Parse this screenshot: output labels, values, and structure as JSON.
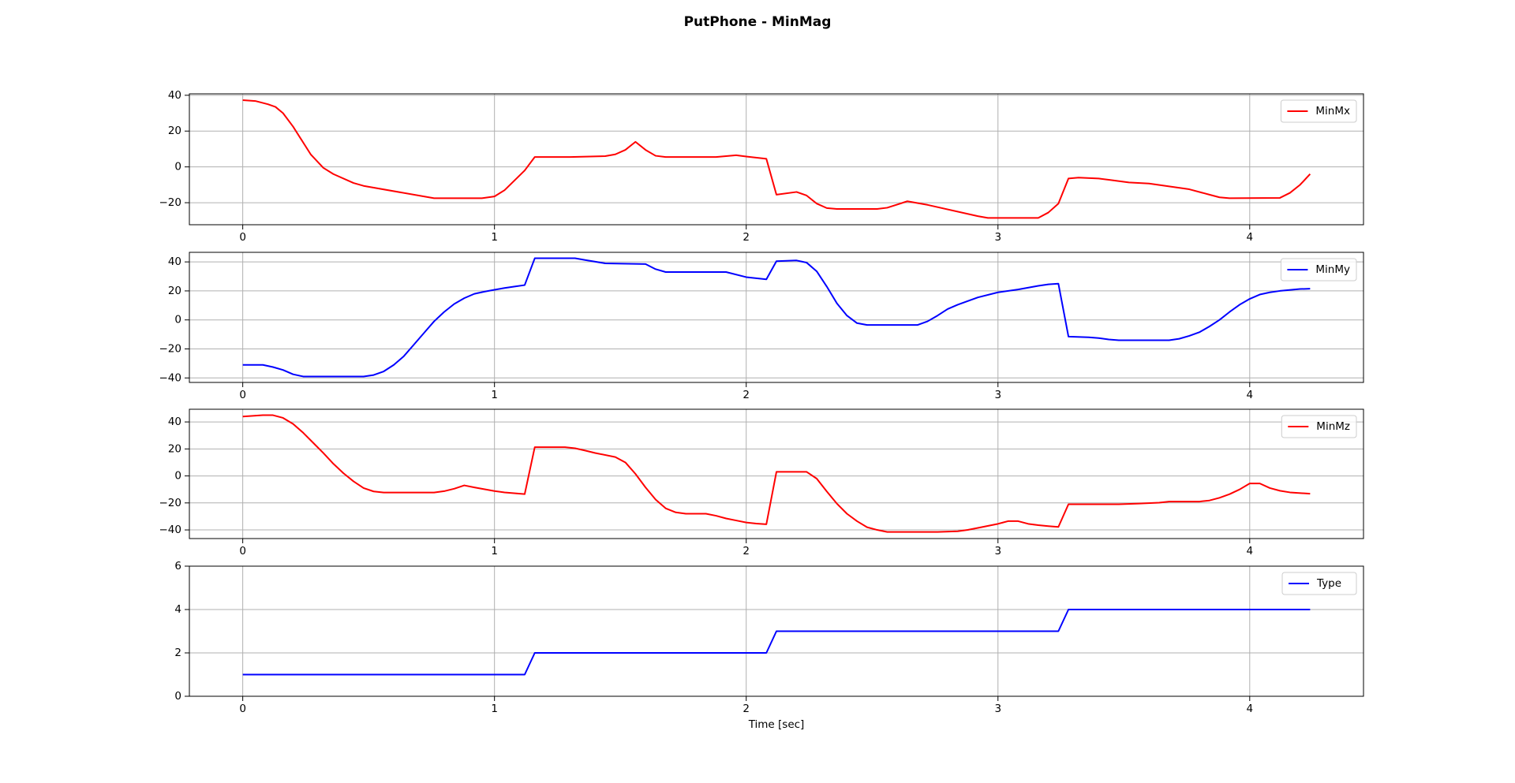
{
  "title": "PutPhone - MinMag",
  "chart_data": [
    {
      "type": "line",
      "x": [
        0,
        0.05,
        0.1,
        0.13,
        0.16,
        0.2,
        0.27,
        0.32,
        0.36,
        0.44,
        0.48,
        0.76,
        0.95,
        1.0,
        1.04,
        1.12,
        1.16,
        1.3,
        1.44,
        1.48,
        1.52,
        1.56,
        1.6,
        1.64,
        1.68,
        1.88,
        1.96,
        2.0,
        2.08,
        2.12,
        2.2,
        2.24,
        2.28,
        2.32,
        2.36,
        2.52,
        2.56,
        2.64,
        2.72,
        2.92,
        2.96,
        3.16,
        3.2,
        3.24,
        3.28,
        3.32,
        3.4,
        3.44,
        3.52,
        3.6,
        3.76,
        3.84,
        3.88,
        3.92,
        4.12,
        4.16,
        4.2,
        4.24
      ],
      "series": [
        {
          "name": "MinMx",
          "color": "#ff0000",
          "values": [
            37.3,
            36.8,
            35,
            33.5,
            30,
            22.5,
            7,
            -0.5,
            -4,
            -9,
            -10.6,
            -17.5,
            -17.5,
            -16.5,
            -13,
            -2,
            5.5,
            5.5,
            6,
            7,
            9.5,
            14,
            9.5,
            6.2,
            5.5,
            5.5,
            6.5,
            5.8,
            4.5,
            -15.5,
            -14,
            -16,
            -20.5,
            -23,
            -23.5,
            -23.5,
            -22.8,
            -19.2,
            -21.2,
            -27.5,
            -28.5,
            -28.5,
            -25.5,
            -20.5,
            -6.5,
            -6,
            -6.5,
            -7.2,
            -8.7,
            -9.3,
            -12.5,
            -15.5,
            -17,
            -17.5,
            -17.3,
            -14.5,
            -10,
            -4
          ]
        }
      ],
      "xlim": [
        -0.212,
        4.452
      ],
      "xticks": [
        0,
        1,
        2,
        3,
        4
      ],
      "ylim": [
        -32.3,
        40.8
      ],
      "yticks": [
        {
          "value": -20,
          "label": "−20"
        },
        0,
        20,
        40
      ],
      "grid": true,
      "legend": "upper right"
    },
    {
      "type": "line",
      "x": [
        0,
        0.08,
        0.12,
        0.16,
        0.2,
        0.24,
        0.48,
        0.52,
        0.56,
        0.6,
        0.64,
        0.68,
        0.72,
        0.76,
        0.8,
        0.84,
        0.88,
        0.92,
        0.96,
        1.0,
        1.04,
        1.08,
        1.12,
        1.16,
        1.32,
        1.36,
        1.44,
        1.6,
        1.64,
        1.68,
        1.92,
        2.0,
        2.08,
        2.12,
        2.2,
        2.24,
        2.28,
        2.32,
        2.36,
        2.4,
        2.44,
        2.48,
        2.68,
        2.72,
        2.76,
        2.8,
        2.84,
        2.92,
        3.0,
        3.08,
        3.16,
        3.2,
        3.24,
        3.28,
        3.36,
        3.4,
        3.44,
        3.48,
        3.68,
        3.72,
        3.76,
        3.8,
        3.84,
        3.88,
        3.92,
        3.96,
        4.0,
        4.04,
        4.08,
        4.12,
        4.2,
        4.24
      ],
      "series": [
        {
          "name": "MinMy",
          "color": "#0000ff",
          "values": [
            -31,
            -31,
            -32.5,
            -34.5,
            -37.5,
            -39,
            -39,
            -38,
            -35.5,
            -31,
            -25,
            -17,
            -9,
            -1,
            5.5,
            11,
            15,
            18,
            19.5,
            20.8,
            22,
            23,
            24,
            42.5,
            42.5,
            41.3,
            39,
            38.5,
            35,
            33,
            33,
            29.5,
            28,
            40.5,
            41,
            39.5,
            33.5,
            23,
            11.5,
            3,
            -2.2,
            -3.5,
            -3.5,
            -1,
            3,
            7.5,
            10.5,
            15.5,
            19,
            21,
            23.5,
            24.5,
            25,
            -11.5,
            -12,
            -12.5,
            -13.5,
            -14,
            -14,
            -13,
            -11,
            -8.5,
            -4.5,
            0,
            5.5,
            10.5,
            14.5,
            17.5,
            19,
            20,
            21.3,
            21.5
          ]
        }
      ],
      "xlim": [
        -0.212,
        4.452
      ],
      "xticks": [
        0,
        1,
        2,
        3,
        4
      ],
      "ylim": [
        -43.1,
        46.6
      ],
      "yticks": [
        {
          "value": -40,
          "label": "−40"
        },
        {
          "value": -20,
          "label": "−20"
        },
        0,
        20,
        40
      ],
      "grid": true,
      "legend": "upper right"
    },
    {
      "type": "line",
      "x": [
        0,
        0.08,
        0.12,
        0.16,
        0.2,
        0.24,
        0.28,
        0.32,
        0.36,
        0.4,
        0.44,
        0.48,
        0.52,
        0.56,
        0.76,
        0.8,
        0.84,
        0.88,
        0.92,
        1.0,
        1.04,
        1.12,
        1.16,
        1.28,
        1.32,
        1.36,
        1.4,
        1.48,
        1.52,
        1.56,
        1.6,
        1.64,
        1.68,
        1.72,
        1.76,
        1.84,
        1.88,
        1.92,
        1.96,
        2.0,
        2.04,
        2.08,
        2.12,
        2.24,
        2.28,
        2.32,
        2.36,
        2.4,
        2.44,
        2.48,
        2.52,
        2.56,
        2.76,
        2.84,
        2.88,
        2.92,
        3.0,
        3.04,
        3.08,
        3.12,
        3.16,
        3.2,
        3.24,
        3.28,
        3.48,
        3.56,
        3.64,
        3.68,
        3.8,
        3.84,
        3.88,
        3.92,
        3.96,
        4.0,
        4.04,
        4.08,
        4.12,
        4.16,
        4.24
      ],
      "series": [
        {
          "name": "MinMz",
          "color": "#ff0000",
          "values": [
            44,
            45,
            45,
            43,
            38.5,
            32,
            24.5,
            17,
            9,
            2,
            -4,
            -9,
            -11.5,
            -12.3,
            -12.3,
            -11.3,
            -9.5,
            -7,
            -8.5,
            -11.2,
            -12.2,
            -13.5,
            21.3,
            21.3,
            20.5,
            18.8,
            17,
            14,
            10,
            1.5,
            -8.5,
            -17.5,
            -24,
            -27,
            -28,
            -28,
            -29.5,
            -31.5,
            -33,
            -34.5,
            -35.3,
            -35.8,
            3,
            3,
            -2,
            -11.5,
            -20.5,
            -28,
            -33.5,
            -38,
            -40,
            -41.5,
            -41.5,
            -41,
            -40,
            -38.5,
            -35.5,
            -33.5,
            -33.5,
            -35.5,
            -36.5,
            -37.2,
            -37.8,
            -21,
            -21,
            -20.5,
            -19.8,
            -19,
            -19,
            -18.2,
            -16.2,
            -13.5,
            -10,
            -5.6,
            -5.6,
            -9,
            -11,
            -12.2,
            -13.2
          ]
        }
      ],
      "xlim": [
        -0.212,
        4.452
      ],
      "xticks": [
        0,
        1,
        2,
        3,
        4
      ],
      "ylim": [
        -46.4,
        49.4
      ],
      "yticks": [
        {
          "value": -40,
          "label": "−40"
        },
        {
          "value": -20,
          "label": "−20"
        },
        0,
        20,
        40
      ],
      "grid": true,
      "legend": "upper right"
    },
    {
      "type": "line",
      "x": [
        0,
        1.12,
        1.16,
        2.08,
        2.12,
        3.24,
        3.28,
        4.24
      ],
      "series": [
        {
          "name": "Type",
          "color": "#0000ff",
          "values": [
            1,
            1,
            2,
            2,
            3,
            3,
            4,
            4
          ]
        }
      ],
      "xlim": [
        -0.212,
        4.452
      ],
      "xticks": [
        0,
        1,
        2,
        3,
        4
      ],
      "ylim": [
        0,
        6
      ],
      "yticks": [
        0,
        2,
        4,
        6
      ],
      "xlabel": "Time [sec]",
      "grid": true,
      "legend": "upper right"
    }
  ]
}
